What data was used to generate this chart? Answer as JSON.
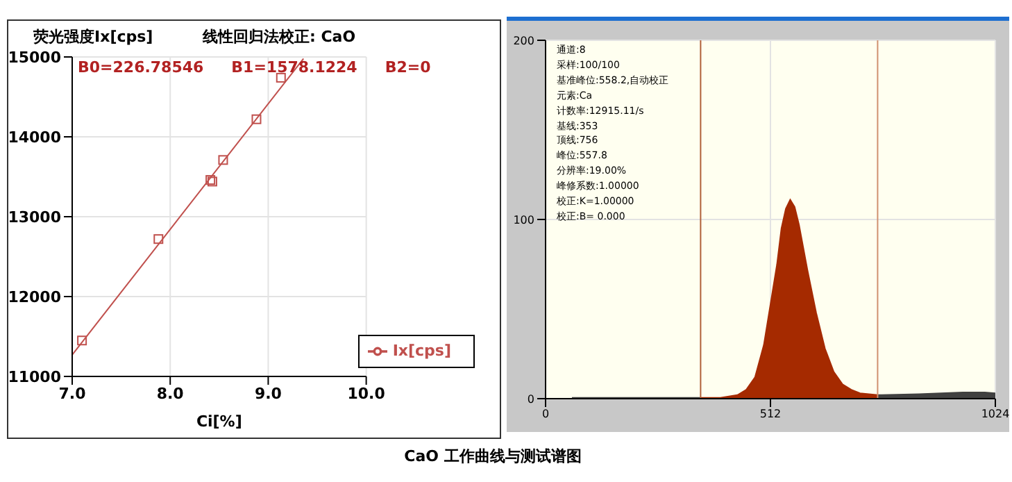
{
  "chart_data": [
    {
      "type": "scatter",
      "title": "线性回归法校正: CaO",
      "ylabel": "荧光强度Ix[cps]",
      "xlabel": "Ci[%]",
      "annotations": [
        "B0=226.78546",
        "B1=1578.1224",
        "B2=0"
      ],
      "x": [
        7.1,
        7.88,
        8.41,
        8.43,
        8.54,
        8.88,
        9.13
      ],
      "series": [
        {
          "name": "Ix[cps]",
          "color": "#c0504d",
          "marker": "square",
          "values": [
            11450,
            12720,
            13460,
            13440,
            13710,
            14220,
            14740
          ]
        },
        {
          "type": "line",
          "color": "#c0504d",
          "marker": "none",
          "x": [
            7.0,
            9.36
          ],
          "values": [
            11270,
            14980
          ]
        }
      ],
      "xlim": [
        7.0,
        10.0
      ],
      "xticks": [
        {
          "value": 7,
          "label": "7.0"
        },
        {
          "value": 8,
          "label": "8.0"
        },
        {
          "value": 9,
          "label": "9.0"
        },
        {
          "value": 10,
          "label": "10.0"
        }
      ],
      "ylim": [
        11000,
        15000
      ],
      "yticks": [
        11000,
        12000,
        13000,
        14000,
        15000
      ],
      "grid": true,
      "legend": "bottom right"
    },
    {
      "type": "area",
      "annotations": [
        "通道:8",
        "采样:100/100",
        "基准峰位:558.2,自动校正",
        "元素:Ca",
        "计数率:12915.11/s",
        "基线:353",
        "顶线:756",
        "峰位:557.8",
        "分辨率:19.00%",
        "峰修系数:1.00000",
        "校正:K=1.00000",
        "校正:B=  0.000",
        "CaO 工作曲线与测试谱图"
      ],
      "series": [
        {
          "color": "#a52a00",
          "x": [
            353,
            398,
            437,
            457,
            477,
            497,
            517,
            527,
            537,
            547,
            557,
            567,
            577,
            596,
            616,
            636,
            656,
            676,
            696,
            716,
            756
          ],
          "values": [
            0.5,
            0.5,
            2,
            5,
            12,
            30,
            60,
            75,
            95,
            106,
            111,
            107,
            97,
            72,
            48,
            28,
            15,
            8,
            5,
            3,
            2
          ]
        },
        {
          "color": "#404040",
          "x": [
            60,
            353,
            null,
            756,
            850,
            950,
            1000,
            1024
          ],
          "values": [
            0.5,
            0.5,
            null,
            2,
            2.5,
            3.5,
            3.5,
            3
          ]
        }
      ],
      "xlim": [
        0,
        1024
      ],
      "xticks": [
        0,
        512,
        1024
      ],
      "ylim": [
        0,
        200
      ],
      "yticks": [
        0,
        100,
        200
      ],
      "ref_lines": [
        {
          "axis": "x",
          "value": 353,
          "color": "#b0603a"
        },
        {
          "axis": "x",
          "value": 756,
          "color": "#d09070"
        }
      ],
      "grid": true
    }
  ]
}
